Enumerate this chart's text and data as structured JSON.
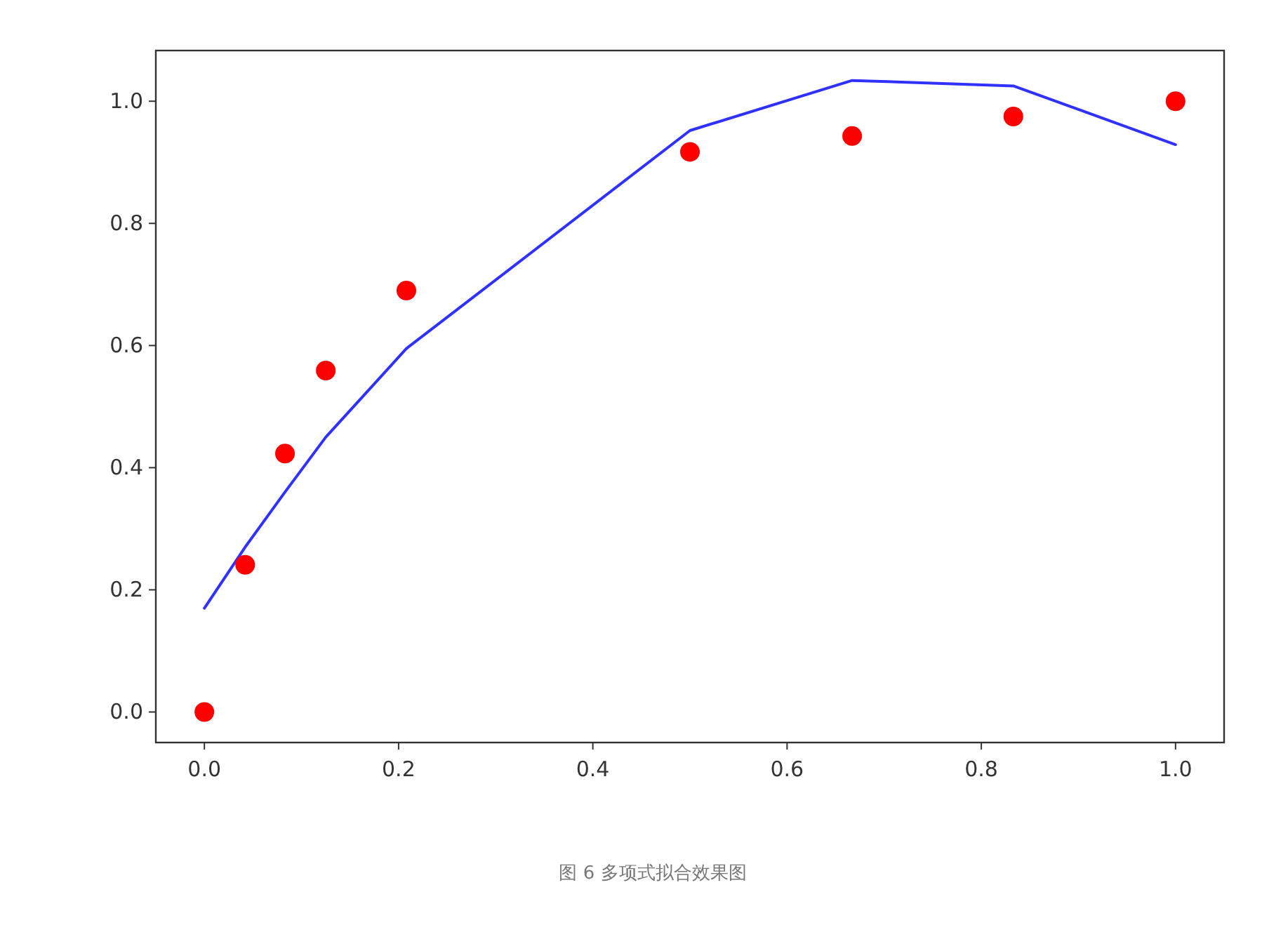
{
  "chart_data": {
    "type": "line",
    "series": [
      {
        "color": "#3030ff",
        "marker": "none",
        "x": [
          0,
          0.042,
          0.083,
          0.125,
          0.208,
          0.5,
          0.667,
          0.833,
          1.0
        ],
        "values": [
          0.17,
          0.27,
          0.36,
          0.45,
          0.595,
          0.952,
          1.034,
          1.025,
          0.929
        ]
      },
      {
        "type": "scatter",
        "color": "#ff0000",
        "marker": "circle",
        "x": [
          0,
          0.042,
          0.083,
          0.125,
          0.208,
          0.5,
          0.667,
          0.833,
          1.0
        ],
        "values": [
          0.0,
          0.241,
          0.423,
          0.559,
          0.69,
          0.917,
          0.943,
          0.975,
          1.0
        ]
      }
    ],
    "xlim": [
      -0.05,
      1.05
    ],
    "ylim": [
      -0.05,
      1.083
    ],
    "xticks": [
      {
        "value": 0,
        "label": "0.0"
      },
      {
        "value": 0.2,
        "label": "0.2"
      },
      {
        "value": 0.4,
        "label": "0.4"
      },
      {
        "value": 0.6,
        "label": "0.6"
      },
      {
        "value": 0.8,
        "label": "0.8"
      },
      {
        "value": 1,
        "label": "1.0"
      }
    ],
    "yticks": [
      {
        "value": 0,
        "label": "0.0"
      },
      {
        "value": 0.2,
        "label": "0.2"
      },
      {
        "value": 0.4,
        "label": "0.4"
      },
      {
        "value": 0.6,
        "label": "0.6"
      },
      {
        "value": 0.8,
        "label": "0.8"
      },
      {
        "value": 1,
        "label": "1.0"
      }
    ],
    "annotations": [
      "图 6 多项式拟合效果图"
    ]
  }
}
